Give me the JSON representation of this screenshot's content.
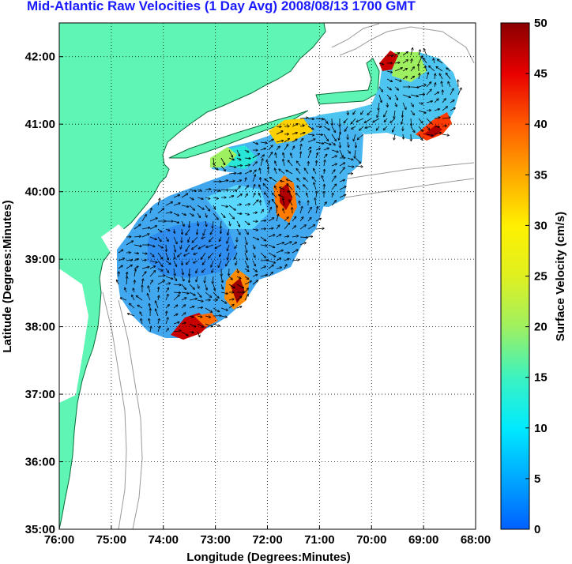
{
  "title": "Mid-Atlantic Raw Velocities (1 Day Avg) 2008/08/13 1700 GMT",
  "map": {
    "xlabel": "Longitude (Degrees:Minutes)",
    "ylabel": "Latitude (Degrees:Minutes)",
    "lon_range": [
      -76,
      -68
    ],
    "lat_range": [
      35,
      42.5
    ],
    "lon_ticks": [
      "76:00",
      "75:00",
      "74:00",
      "73:00",
      "72:00",
      "71:00",
      "70:00",
      "69:00",
      "68:00"
    ],
    "lat_ticks": [
      "35:00",
      "36:00",
      "37:00",
      "38:00",
      "39:00",
      "40:00",
      "41:00",
      "42:00"
    ],
    "grid": true,
    "land_color": "#5ff5b4",
    "bathymetry_color": "#9a9a9a"
  },
  "colorbar": {
    "label": "Surface Velocity (cm/s)",
    "min": 0,
    "max": 50,
    "ticks": [
      "0",
      "5",
      "10",
      "15",
      "20",
      "25",
      "30",
      "35",
      "40",
      "45",
      "50"
    ]
  }
}
